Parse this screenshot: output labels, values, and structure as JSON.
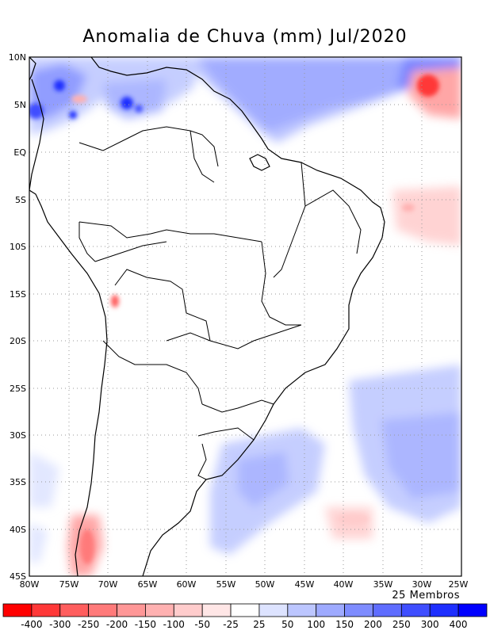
{
  "title": "Anomalia de Chuva (mm) Jul/2020",
  "ensemble_note": "25 Membros",
  "map": {
    "lat_labels": [
      "10N",
      "5N",
      "EQ",
      "5S",
      "10S",
      "15S",
      "20S",
      "25S",
      "30S",
      "35S",
      "40S",
      "45S"
    ],
    "lon_labels": [
      "80W",
      "75W",
      "70W",
      "65W",
      "60W",
      "55W",
      "50W",
      "45W",
      "40W",
      "35W",
      "30W",
      "25W"
    ],
    "lat_range": [
      -45,
      10
    ],
    "lon_range": [
      -80,
      -25
    ],
    "gridlines": "dotted every 5 degrees"
  },
  "colorbar": {
    "labels": [
      "-400",
      "-300",
      "-250",
      "-200",
      "-150",
      "-100",
      "-50",
      "-25",
      "25",
      "50",
      "100",
      "150",
      "200",
      "250",
      "300",
      "400"
    ],
    "colors": [
      "#ff0000",
      "#ff3838",
      "#ff5e5e",
      "#ff7a7a",
      "#ff9797",
      "#ffb1b1",
      "#ffcccc",
      "#ffe6e6",
      "#ffffff",
      "#dde3ff",
      "#bcc6ff",
      "#9eaaff",
      "#7e8cff",
      "#5f6dff",
      "#3f4eff",
      "#1e2fff",
      "#0000ff"
    ]
  },
  "anomaly_regions": [
    {
      "name": "northern-atlantic-wet",
      "sign": "positive",
      "strength": "high"
    },
    {
      "name": "tropical-atlantic-dry",
      "sign": "negative",
      "strength": "high"
    },
    {
      "name": "colombia-wet",
      "sign": "positive",
      "strength": "very-high"
    },
    {
      "name": "venezuela-wet",
      "sign": "positive",
      "strength": "very-high"
    },
    {
      "name": "southern-atlantic-wet",
      "sign": "positive",
      "strength": "moderate"
    },
    {
      "name": "argentina-wet",
      "sign": "positive",
      "strength": "moderate"
    },
    {
      "name": "southern-chile-dry",
      "sign": "negative",
      "strength": "high"
    },
    {
      "name": "northeast-brazil-coast-dry",
      "sign": "negative",
      "strength": "low"
    },
    {
      "name": "bolivia-dry",
      "sign": "negative",
      "strength": "high"
    }
  ]
}
